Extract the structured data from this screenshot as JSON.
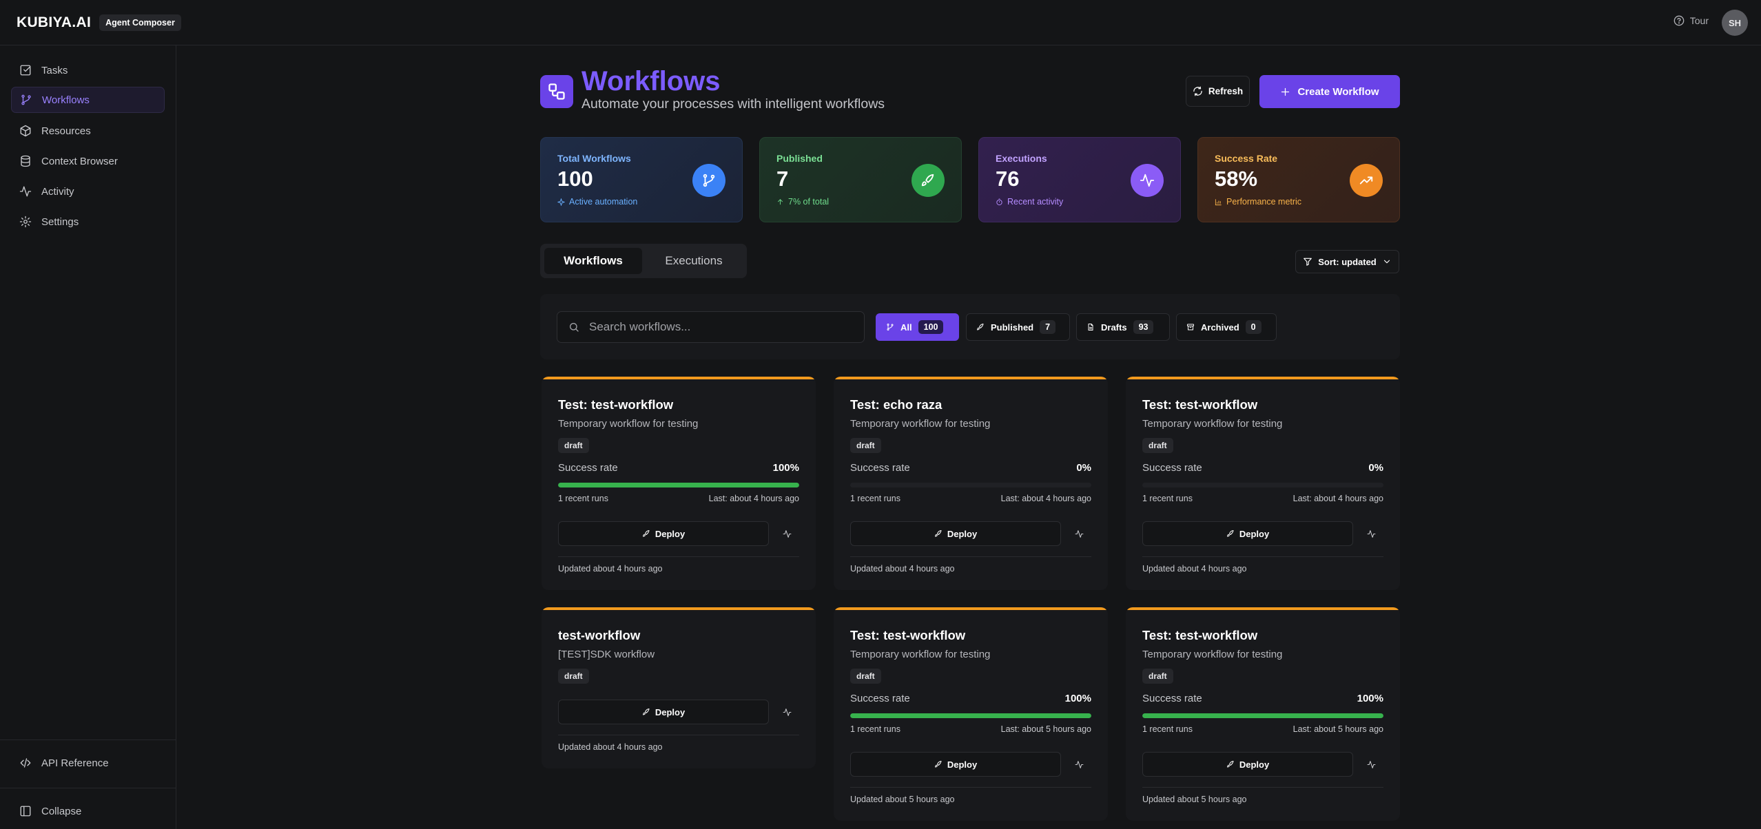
{
  "header": {
    "brand": "KUBIYA.AI",
    "badge": "Agent Composer",
    "tour_label": "Tour",
    "avatar_initials": "SH"
  },
  "sidebar": {
    "items": [
      {
        "label": "Tasks",
        "icon": "checkbox-icon"
      },
      {
        "label": "Workflows",
        "icon": "git-branch-icon",
        "active": true
      },
      {
        "label": "Resources",
        "icon": "box-icon"
      },
      {
        "label": "Context Browser",
        "icon": "database-icon"
      },
      {
        "label": "Activity",
        "icon": "activity-icon"
      },
      {
        "label": "Settings",
        "icon": "gear-icon"
      }
    ],
    "api_reference": "API Reference",
    "collapse": "Collapse"
  },
  "page": {
    "title": "Workflows",
    "subtitle": "Automate your processes with intelligent workflows",
    "refresh_label": "Refresh",
    "create_label": "Create Workflow"
  },
  "stats": [
    {
      "label": "Total Workflows",
      "value": "100",
      "note": "Active automation",
      "accent": "#6ab0ff",
      "icon": "git-branch-icon"
    },
    {
      "label": "Published",
      "value": "7",
      "note": "7% of total",
      "accent": "#6fdc8c",
      "icon": "rocket-icon"
    },
    {
      "label": "Executions",
      "value": "76",
      "note": "Recent activity",
      "accent": "#b58cff",
      "icon": "activity-icon"
    },
    {
      "label": "Success Rate",
      "value": "58%",
      "note": "Performance metric",
      "accent": "#f7b24a",
      "icon": "trending-up-icon"
    }
  ],
  "tabs": {
    "workflows": "Workflows",
    "executions": "Executions"
  },
  "sort_label": "Sort: updated",
  "search": {
    "placeholder": "Search workflows...",
    "value": ""
  },
  "filters": [
    {
      "label": "All",
      "count": "100",
      "active": true
    },
    {
      "label": "Published",
      "count": "7"
    },
    {
      "label": "Drafts",
      "count": "93"
    },
    {
      "label": "Archived",
      "count": "0"
    }
  ],
  "cards": [
    {
      "title": "Test: test-workflow",
      "description": "Temporary workflow for testing",
      "badge": "draft",
      "success_label": "Success rate",
      "success_rate": "100%",
      "success_fraction": 1.0,
      "runs": "1 recent runs",
      "last": "Last: about 4 hours ago",
      "deploy": "Deploy",
      "updated": "Updated about 4 hours ago"
    },
    {
      "title": "Test: echo raza",
      "description": "Temporary workflow for testing",
      "badge": "draft",
      "success_label": "Success rate",
      "success_rate": "0%",
      "success_fraction": 0.0,
      "runs": "1 recent runs",
      "last": "Last: about 4 hours ago",
      "deploy": "Deploy",
      "updated": "Updated about 4 hours ago"
    },
    {
      "title": "Test: test-workflow",
      "description": "Temporary workflow for testing",
      "badge": "draft",
      "success_label": "Success rate",
      "success_rate": "0%",
      "success_fraction": 0.0,
      "runs": "1 recent runs",
      "last": "Last: about 4 hours ago",
      "deploy": "Deploy",
      "updated": "Updated about 4 hours ago"
    },
    {
      "title": "test-workflow",
      "description": "[TEST]SDK workflow",
      "badge": "draft",
      "deploy": "Deploy",
      "updated": "Updated about 4 hours ago"
    },
    {
      "title": "Test: test-workflow",
      "description": "Temporary workflow for testing",
      "badge": "draft",
      "success_label": "Success rate",
      "success_rate": "100%",
      "success_fraction": 1.0,
      "runs": "1 recent runs",
      "last": "Last: about 5 hours ago",
      "deploy": "Deploy",
      "updated": "Updated about 5 hours ago"
    },
    {
      "title": "Test: test-workflow",
      "description": "Temporary workflow for testing",
      "badge": "draft",
      "success_label": "Success rate",
      "success_rate": "100%",
      "success_fraction": 1.0,
      "runs": "1 recent runs",
      "last": "Last: about 5 hours ago",
      "deploy": "Deploy",
      "updated": "Updated about 5 hours ago"
    }
  ]
}
